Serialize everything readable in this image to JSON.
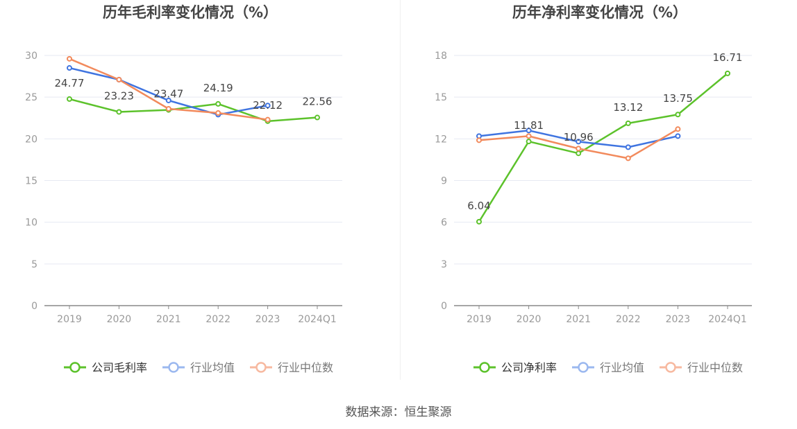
{
  "colors": {
    "company": "#5cc22b",
    "industry_avg": "#3f74e0",
    "industry_median": "#f28a5c",
    "axis": "#999999",
    "grid": "#e6e9f2",
    "label": "#444444",
    "title": "#444444"
  },
  "chart_data": [
    {
      "type": "line",
      "title": "历年毛利率变化情况（%）",
      "categories": [
        "2019",
        "2020",
        "2021",
        "2022",
        "2023",
        "2024Q1"
      ],
      "ylim": [
        0,
        30
      ],
      "yticks": [
        0,
        5,
        10,
        15,
        20,
        25,
        30
      ],
      "grid": true,
      "legend_position": "bottom",
      "series": [
        {
          "name": "公司毛利率",
          "values": [
            24.77,
            23.23,
            23.47,
            24.19,
            22.12,
            22.56
          ],
          "labels": [
            "24.77",
            "23.23",
            "23.47",
            "24.19",
            "22.12",
            "22.56"
          ]
        },
        {
          "name": "行业均值",
          "values": [
            28.5,
            27.1,
            24.6,
            22.9,
            24.0,
            null
          ]
        },
        {
          "name": "行业中位数",
          "values": [
            29.6,
            27.1,
            23.6,
            23.1,
            22.3,
            null
          ]
        }
      ]
    },
    {
      "type": "line",
      "title": "历年净利率变化情况（%）",
      "categories": [
        "2019",
        "2020",
        "2021",
        "2022",
        "2023",
        "2024Q1"
      ],
      "ylim": [
        0,
        18
      ],
      "yticks": [
        0,
        3,
        6,
        9,
        12,
        15,
        18
      ],
      "grid": true,
      "legend_position": "bottom",
      "series": [
        {
          "name": "公司净利率",
          "values": [
            6.04,
            11.81,
            10.96,
            13.12,
            13.75,
            16.71
          ],
          "labels": [
            "6.04",
            "11.81",
            "10.96",
            "13.12",
            "13.75",
            "16.71"
          ]
        },
        {
          "name": "行业均值",
          "values": [
            12.2,
            12.6,
            11.8,
            11.4,
            12.2,
            null
          ]
        },
        {
          "name": "行业中位数",
          "values": [
            11.9,
            12.2,
            11.3,
            10.6,
            12.7,
            null
          ]
        }
      ]
    }
  ],
  "source_text": "数据来源：恒生聚源"
}
